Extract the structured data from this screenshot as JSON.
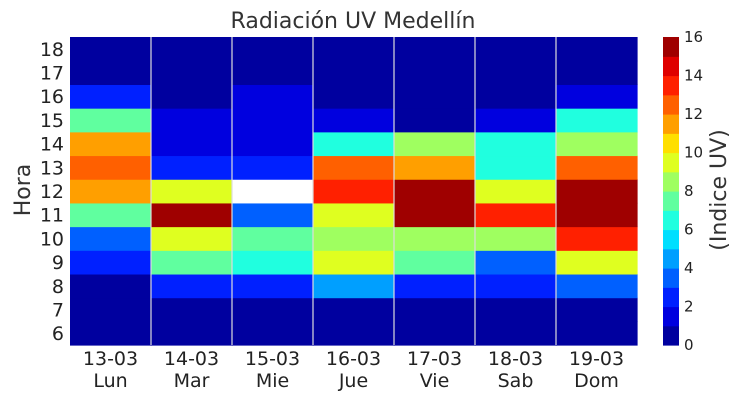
{
  "chart_data": {
    "type": "heatmap",
    "title": "Radiación UV Medellín",
    "ylabel": "Hora",
    "colorbar_label": "(Indice UV)",
    "colormap": "jet",
    "value_range": [
      0,
      16
    ],
    "colorbar_ticks": [
      "0",
      "2",
      "4",
      "6",
      "8",
      "10",
      "12",
      "14",
      "16"
    ],
    "x_categories": [
      {
        "date": "13-03",
        "day": "Lun"
      },
      {
        "date": "14-03",
        "day": "Mar"
      },
      {
        "date": "15-03",
        "day": "Mie"
      },
      {
        "date": "16-03",
        "day": "Jue"
      },
      {
        "date": "17-03",
        "day": "Vie"
      },
      {
        "date": "18-03",
        "day": "Sab"
      },
      {
        "date": "19-03",
        "day": "Dom"
      }
    ],
    "y_categories": [
      "6",
      "7",
      "8",
      "9",
      "10",
      "11",
      "12",
      "13",
      "14",
      "15",
      "16",
      "17",
      "18"
    ],
    "missing_color": "#ffffff",
    "values": [
      [
        0,
        0,
        0,
        0,
        0,
        0,
        0
      ],
      [
        0,
        0,
        0,
        0,
        0,
        0,
        0
      ],
      [
        0,
        2,
        2,
        4,
        2,
        2,
        3
      ],
      [
        2,
        7,
        6,
        9,
        7,
        3,
        9
      ],
      [
        3,
        9,
        7,
        8,
        8,
        8,
        13
      ],
      [
        7,
        16,
        3,
        9,
        16,
        13,
        16
      ],
      [
        11,
        9,
        null,
        13,
        16,
        9,
        16
      ],
      [
        12,
        2,
        2,
        12,
        11,
        6,
        12
      ],
      [
        11,
        1,
        1,
        6,
        8,
        6,
        8
      ],
      [
        7,
        1,
        1,
        1,
        0,
        1,
        6
      ],
      [
        2,
        0,
        1,
        0,
        0,
        0,
        1
      ],
      [
        0,
        0,
        0,
        0,
        0,
        0,
        0
      ],
      [
        0,
        0,
        0,
        0,
        0,
        0,
        0
      ]
    ]
  }
}
